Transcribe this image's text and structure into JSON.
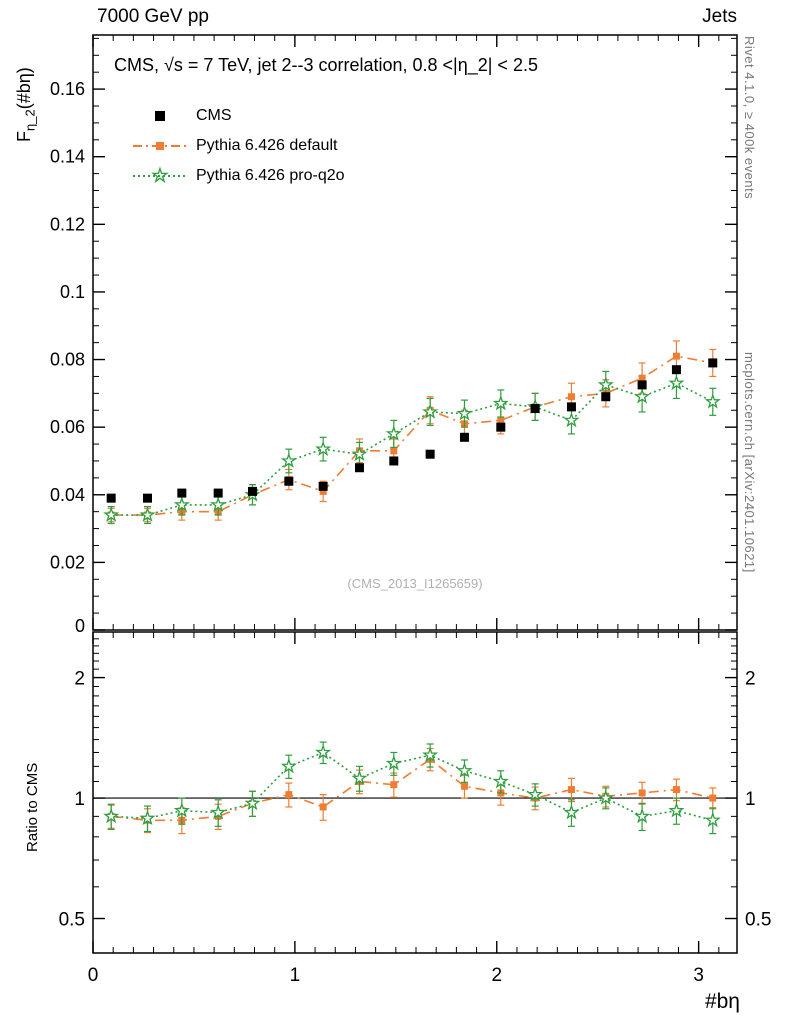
{
  "colors": {
    "cms": "#000000",
    "default_model": "#ee7d33",
    "proq2o": "#2f9e3f",
    "frame": "#000000",
    "note": "#777777",
    "watermark": "#b0b0b0"
  },
  "icons": {
    "star_open": "☆"
  },
  "header": {
    "left": "7000 GeV pp",
    "right": "Jets"
  },
  "panel_title": "CMS, √s = 7 TeV, jet 2--3 correlation, 0.8 <|η_2| < 2.5",
  "ylabel_top": {
    "main": "F",
    "sub": "η_2",
    "rest": "(#bη)"
  },
  "ylabel_bottom": "Ratio to CMS",
  "xlabel": "#bη",
  "watermark": "(CMS_2013_I1265659)",
  "side_notes": {
    "top": "Rivet 4.1.0, ≥ 400k events",
    "bottom": "mcplots.cern.ch [arXiv:2401.10621]"
  },
  "legend": {
    "entries": [
      {
        "label": "CMS"
      },
      {
        "label": "Pythia 6.426 default"
      },
      {
        "label": "Pythia 6.426 pro-q2o"
      }
    ]
  },
  "chart_data": {
    "type": "scatter",
    "title": "CMS, √s = 7 TeV, jet 2--3 correlation, 0.8 <|η_2| < 2.5",
    "xlabel": "#bη",
    "ylabel": "F_η_2(#bη)",
    "ratio_ylabel": "Ratio to CMS",
    "xlim": [
      0,
      3.19
    ],
    "ylim": [
      0,
      0.176
    ],
    "ratio_ylim": [
      0.41,
      2.6
    ],
    "ratio_scale": "log",
    "grid": false,
    "legend_position": "top-left-inside",
    "xticks": {
      "major": [
        0,
        1,
        2,
        3
      ],
      "labels": [
        "0",
        "1",
        "2",
        "3"
      ],
      "minor_step": 0.1
    },
    "yticks": {
      "major": [
        0,
        0.02,
        0.04,
        0.06,
        0.08,
        0.1,
        0.12,
        0.14,
        0.16
      ],
      "labels": [
        "0",
        "0.02",
        "0.04",
        "0.06",
        "0.08",
        "0.1",
        "0.12",
        "0.14",
        "0.16"
      ],
      "minor_step": 0.005
    },
    "ratio_yticks": {
      "major": [
        0.5,
        1,
        2
      ],
      "labels": [
        "0.5",
        "1",
        "2"
      ],
      "minor": [
        0.6,
        0.7,
        0.8,
        0.9,
        1.1,
        1.2,
        1.3,
        1.4,
        1.5,
        1.6,
        1.7,
        1.8,
        1.9,
        2.1,
        2.2,
        2.3,
        2.4,
        2.5
      ]
    },
    "x": [
      0.09,
      0.27,
      0.44,
      0.62,
      0.79,
      0.97,
      1.14,
      1.32,
      1.49,
      1.67,
      1.84,
      2.02,
      2.19,
      2.37,
      2.54,
      2.72,
      2.89,
      3.07
    ],
    "series": [
      {
        "name": "CMS",
        "marker": "square",
        "color": "#000000",
        "line": "none",
        "values": [
          0.039,
          0.039,
          0.0405,
          0.0405,
          0.041,
          0.044,
          0.0425,
          0.048,
          0.05,
          0.052,
          0.057,
          0.06,
          0.0655,
          0.066,
          0.069,
          0.0725,
          0.077,
          0.079
        ],
        "errors": [
          0,
          0,
          0,
          0,
          0,
          0,
          0,
          0,
          0,
          0,
          0,
          0,
          0,
          0,
          0,
          0,
          0,
          0
        ]
      },
      {
        "name": "Pythia 6.426 default",
        "marker": "square",
        "color": "#ee7d33",
        "line": "dashdot",
        "values": [
          0.034,
          0.034,
          0.035,
          0.035,
          0.04,
          0.0445,
          0.041,
          0.053,
          0.053,
          0.065,
          0.061,
          0.062,
          0.066,
          0.069,
          0.07,
          0.0745,
          0.081,
          0.079
        ],
        "errors": [
          0.002,
          0.002,
          0.0025,
          0.0025,
          0.003,
          0.003,
          0.003,
          0.0035,
          0.0035,
          0.004,
          0.004,
          0.004,
          0.004,
          0.004,
          0.004,
          0.0045,
          0.0045,
          0.004
        ]
      },
      {
        "name": "Pythia 6.426 pro-q2o",
        "marker": "star",
        "color": "#2f9e3f",
        "line": "dotted",
        "values": [
          0.034,
          0.034,
          0.037,
          0.037,
          0.04,
          0.05,
          0.0535,
          0.052,
          0.058,
          0.0645,
          0.064,
          0.067,
          0.066,
          0.062,
          0.0725,
          0.069,
          0.073,
          0.0675
        ],
        "errors": [
          0.0025,
          0.0025,
          0.003,
          0.003,
          0.003,
          0.0035,
          0.0035,
          0.0035,
          0.004,
          0.004,
          0.004,
          0.004,
          0.004,
          0.004,
          0.004,
          0.0045,
          0.0045,
          0.004
        ]
      }
    ],
    "ratio_series": [
      {
        "name": "Pythia 6.426 default",
        "marker": "square",
        "color": "#ee7d33",
        "line": "dashdot",
        "values": [
          0.9,
          0.88,
          0.88,
          0.9,
          0.97,
          1.02,
          0.95,
          1.1,
          1.08,
          1.25,
          1.07,
          1.03,
          1.0,
          1.05,
          1.01,
          1.03,
          1.05,
          1.0
        ],
        "errors": [
          0.06,
          0.06,
          0.065,
          0.065,
          0.07,
          0.07,
          0.07,
          0.075,
          0.075,
          0.08,
          0.07,
          0.07,
          0.065,
          0.07,
          0.06,
          0.065,
          0.065,
          0.06
        ]
      },
      {
        "name": "Pythia 6.426 pro-q2o",
        "marker": "star",
        "color": "#2f9e3f",
        "line": "dotted",
        "values": [
          0.9,
          0.89,
          0.93,
          0.92,
          0.97,
          1.2,
          1.3,
          1.12,
          1.22,
          1.28,
          1.17,
          1.1,
          1.02,
          0.92,
          1.0,
          0.9,
          0.93,
          0.88
        ],
        "errors": [
          0.065,
          0.065,
          0.07,
          0.07,
          0.07,
          0.08,
          0.08,
          0.08,
          0.08,
          0.085,
          0.075,
          0.07,
          0.065,
          0.07,
          0.06,
          0.07,
          0.07,
          0.065
        ]
      }
    ]
  }
}
